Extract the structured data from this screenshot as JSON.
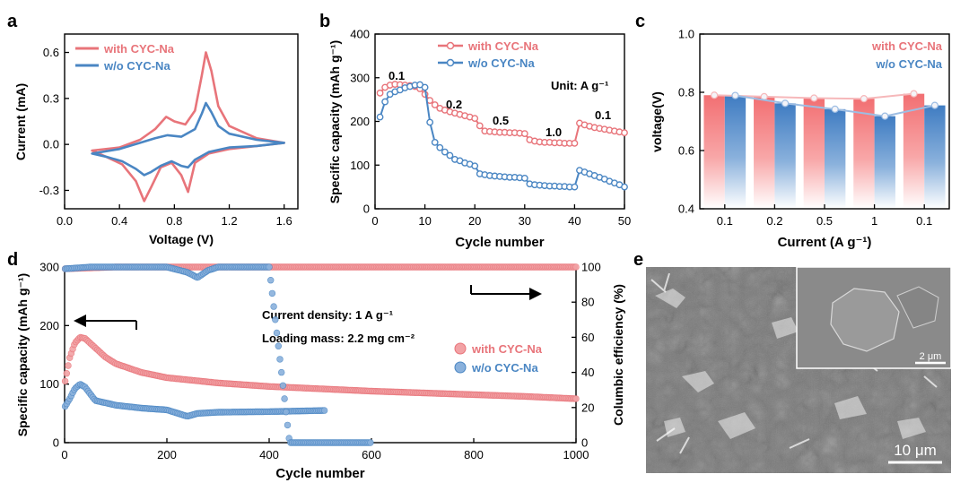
{
  "colors": {
    "red": "#e8747a",
    "blue": "#4a86c3",
    "redBar": "#f48a8c",
    "blueBar": "#4f86c6"
  },
  "panels": {
    "a": {
      "letter": "a",
      "xlabel": "Voltage (V)",
      "ylabel": "Current (mA)",
      "xticks": [
        "0.0",
        "0.4",
        "0.8",
        "1.2",
        "1.6"
      ],
      "yticks": [
        "-0.3",
        "0.0",
        "0.3",
        "0.6"
      ],
      "legend": [
        "with CYC-Na",
        "w/o  CYC-Na"
      ]
    },
    "b": {
      "letter": "b",
      "xlabel": "Cycle number",
      "ylabel": "Specific capacity (mAh g⁻¹)",
      "xticks": [
        "0",
        "10",
        "20",
        "30",
        "40",
        "50"
      ],
      "yticks": [
        "0",
        "100",
        "200",
        "300",
        "400"
      ],
      "legend": [
        "with CYC-Na",
        "w/o  CYC-Na"
      ],
      "unit_note": "Unit: A g⁻¹",
      "rate_labels": [
        "0.1",
        "0.2",
        "0.5",
        "1.0",
        "0.1"
      ]
    },
    "c": {
      "letter": "c",
      "xlabel": "Current (A g⁻¹)",
      "ylabel": "voltage(V)",
      "xticks": [
        "0.1",
        "0.2",
        "0.5",
        "1",
        "0.1"
      ],
      "yticks": [
        "0.4",
        "0.6",
        "0.8",
        "1.0"
      ],
      "legend": [
        "with CYC-Na",
        "w/o  CYC-Na"
      ]
    },
    "d": {
      "letter": "d",
      "xlabel": "Cycle number",
      "ylabel": "Specific capacity (mAh g⁻¹)",
      "y2label": "Columbic efficiency (%)",
      "xticks": [
        "0",
        "200",
        "400",
        "600",
        "800",
        "1000"
      ],
      "yticks": [
        "0",
        "100",
        "200",
        "300"
      ],
      "y2ticks": [
        "0",
        "20",
        "40",
        "60",
        "80",
        "100"
      ],
      "note1": "Current density: 1 A g⁻¹",
      "note2": "Loading mass: 2.2 mg cm⁻²",
      "legend": [
        "with CYC-Na",
        "w/o  CYC-Na"
      ]
    },
    "e": {
      "letter": "e",
      "scale_main": "10 μm",
      "scale_inset": "2 μm"
    }
  },
  "chart_data": [
    {
      "type": "line",
      "panel": "a",
      "title": "",
      "xlabel": "Voltage (V)",
      "ylabel": "Current (mA)",
      "xlim": [
        0,
        1.7
      ],
      "ylim": [
        -0.42,
        0.72
      ],
      "series": [
        {
          "name": "with CYC-Na",
          "color": "#e8747a",
          "points": [
            [
              0.2,
              -0.04
            ],
            [
              0.4,
              -0.02
            ],
            [
              0.55,
              0.03
            ],
            [
              0.66,
              0.1
            ],
            [
              0.74,
              0.18
            ],
            [
              0.8,
              0.15
            ],
            [
              0.88,
              0.13
            ],
            [
              0.95,
              0.22
            ],
            [
              1.0,
              0.45
            ],
            [
              1.03,
              0.6
            ],
            [
              1.07,
              0.48
            ],
            [
              1.12,
              0.25
            ],
            [
              1.2,
              0.12
            ],
            [
              1.4,
              0.04
            ],
            [
              1.6,
              0.01
            ],
            [
              1.4,
              -0.01
            ],
            [
              1.2,
              -0.03
            ],
            [
              1.05,
              -0.06
            ],
            [
              0.95,
              -0.12
            ],
            [
              0.9,
              -0.31
            ],
            [
              0.85,
              -0.2
            ],
            [
              0.78,
              -0.12
            ],
            [
              0.7,
              -0.15
            ],
            [
              0.63,
              -0.28
            ],
            [
              0.58,
              -0.37
            ],
            [
              0.52,
              -0.24
            ],
            [
              0.42,
              -0.13
            ],
            [
              0.3,
              -0.08
            ],
            [
              0.2,
              -0.04
            ]
          ]
        },
        {
          "name": "w/o  CYC-Na",
          "color": "#4a86c3",
          "points": [
            [
              0.2,
              -0.06
            ],
            [
              0.4,
              -0.03
            ],
            [
              0.55,
              0.01
            ],
            [
              0.66,
              0.04
            ],
            [
              0.75,
              0.06
            ],
            [
              0.85,
              0.05
            ],
            [
              0.95,
              0.1
            ],
            [
              1.0,
              0.2
            ],
            [
              1.03,
              0.27
            ],
            [
              1.07,
              0.21
            ],
            [
              1.12,
              0.12
            ],
            [
              1.2,
              0.07
            ],
            [
              1.4,
              0.03
            ],
            [
              1.6,
              0.01
            ],
            [
              1.4,
              -0.01
            ],
            [
              1.2,
              -0.02
            ],
            [
              1.05,
              -0.05
            ],
            [
              0.95,
              -0.1
            ],
            [
              0.9,
              -0.15
            ],
            [
              0.85,
              -0.14
            ],
            [
              0.78,
              -0.11
            ],
            [
              0.7,
              -0.14
            ],
            [
              0.63,
              -0.18
            ],
            [
              0.58,
              -0.2
            ],
            [
              0.52,
              -0.16
            ],
            [
              0.42,
              -0.11
            ],
            [
              0.3,
              -0.08
            ],
            [
              0.2,
              -0.06
            ]
          ]
        }
      ]
    },
    {
      "type": "line",
      "panel": "b",
      "title": "",
      "xlabel": "Cycle number",
      "ylabel": "Specific capacity (mAh g-1)",
      "xlim": [
        0,
        50
      ],
      "ylim": [
        0,
        400
      ],
      "series": [
        {
          "name": "with CYC-Na",
          "color": "#e8747a",
          "values": [
            265,
            278,
            283,
            285,
            284,
            283,
            282,
            280,
            275,
            262,
            248,
            238,
            230,
            226,
            222,
            219,
            216,
            213,
            210,
            207,
            190,
            178,
            177,
            176,
            175,
            175,
            174,
            174,
            173,
            172,
            158,
            155,
            153,
            152,
            152,
            151,
            151,
            150,
            150,
            150,
            196,
            192,
            189,
            186,
            184,
            182,
            180,
            178,
            176,
            174
          ]
        },
        {
          "name": "w/o  CYC-Na",
          "color": "#4a86c3",
          "values": [
            210,
            245,
            262,
            268,
            272,
            277,
            280,
            283,
            284,
            278,
            198,
            152,
            140,
            130,
            122,
            113,
            110,
            105,
            102,
            98,
            80,
            78,
            76,
            75,
            74,
            73,
            72,
            72,
            71,
            70,
            57,
            55,
            54,
            53,
            52,
            52,
            51,
            51,
            50,
            50,
            88,
            84,
            80,
            76,
            72,
            68,
            63,
            59,
            55,
            50
          ]
        }
      ]
    },
    {
      "type": "bar",
      "panel": "c",
      "title": "",
      "xlabel": "Current (A g-1)",
      "ylabel": "voltage(V)",
      "categories": [
        "0.1",
        "0.2",
        "0.5",
        "1",
        "0.1"
      ],
      "ylim": [
        0.4,
        1.0
      ],
      "series": [
        {
          "name": "with CYC-Na",
          "color": "#f48a8c",
          "values": [
            0.79,
            0.785,
            0.78,
            0.778,
            0.795
          ]
        },
        {
          "name": "w/o  CYC-Na",
          "color": "#4f86c6",
          "values": [
            0.789,
            0.762,
            0.742,
            0.718,
            0.755
          ]
        }
      ]
    },
    {
      "type": "scatter",
      "panel": "d",
      "title": "",
      "xlabel": "Cycle number",
      "ylabel": "Specific capacity (mAh g-1)",
      "y2label": "Columbic efficiency (%)",
      "xlim": [
        0,
        1000
      ],
      "ylim": [
        0,
        300
      ],
      "y2lim": [
        0,
        100
      ],
      "series": [
        {
          "name": "with CYC-Na",
          "axis": "left",
          "color": "#e8747a",
          "x": [
            1,
            10,
            20,
            30,
            40,
            60,
            80,
            100,
            150,
            200,
            300,
            400,
            500,
            600,
            700,
            800,
            900,
            1000
          ],
          "values": [
            105,
            145,
            170,
            180,
            178,
            162,
            146,
            135,
            120,
            111,
            102,
            96,
            92,
            88,
            85,
            82,
            79,
            75
          ]
        },
        {
          "name": "w/o  CYC-Na",
          "axis": "left",
          "color": "#4a86c3",
          "x": [
            1,
            10,
            20,
            30,
            40,
            60,
            80,
            100,
            150,
            200,
            240,
            260,
            300,
            400,
            510
          ],
          "values": [
            62,
            75,
            92,
            100,
            95,
            72,
            68,
            64,
            59,
            56,
            45,
            50,
            52,
            53,
            55
          ]
        },
        {
          "name": "with CYC-Na CE",
          "axis": "right",
          "color": "#e8747a",
          "x": [
            1,
            100,
            200,
            300,
            400,
            500,
            600,
            700,
            800,
            900,
            1000
          ],
          "values": [
            99,
            100,
            100,
            100,
            100,
            100,
            100,
            100,
            100,
            100,
            100
          ]
        },
        {
          "name": "w/o  CYC-Na CE",
          "axis": "right",
          "color": "#4a86c3",
          "x": [
            1,
            50,
            100,
            200,
            240,
            260,
            280,
            300,
            400,
            440,
            460,
            500,
            600
          ],
          "values": [
            99,
            100,
            100,
            100,
            97,
            94,
            98,
            100,
            100,
            0,
            0,
            0,
            0
          ]
        }
      ]
    }
  ]
}
